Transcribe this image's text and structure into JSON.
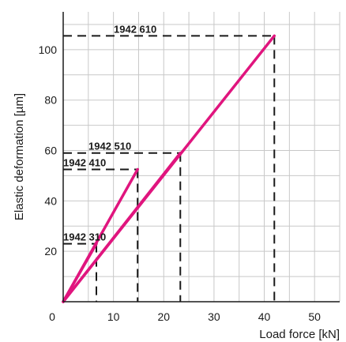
{
  "chart_data": {
    "type": "line",
    "title": "",
    "xlabel": "Load force [kN]",
    "ylabel": "Elastic deformation [µm]",
    "xlim": [
      0,
      55
    ],
    "ylim": [
      0,
      115
    ],
    "x_ticks": [
      0,
      10,
      20,
      30,
      40,
      50
    ],
    "y_ticks": [
      20,
      40,
      60,
      80,
      100
    ],
    "x_tick_labels": [
      "0",
      "10",
      "20",
      "30",
      "40",
      "50"
    ],
    "y_tick_labels": [
      "20",
      "40",
      "60",
      "80",
      "100"
    ],
    "grid": true,
    "series": [
      {
        "name": "1942 310",
        "x": [
          0,
          6.6
        ],
        "y": [
          0,
          23
        ]
      },
      {
        "name": "1942 410",
        "x": [
          0,
          14.8
        ],
        "y": [
          0,
          52.5
        ]
      },
      {
        "name": "1942 510",
        "x": [
          0,
          23.3
        ],
        "y": [
          0,
          59
        ]
      },
      {
        "name": "1942 610",
        "x": [
          0,
          42
        ],
        "y": [
          0,
          105.5
        ]
      }
    ],
    "colors": {
      "line": "#e0157e",
      "grid": "#c8c8c8",
      "axis": "#1a1a1a",
      "dash": "#1a1a1a"
    }
  }
}
